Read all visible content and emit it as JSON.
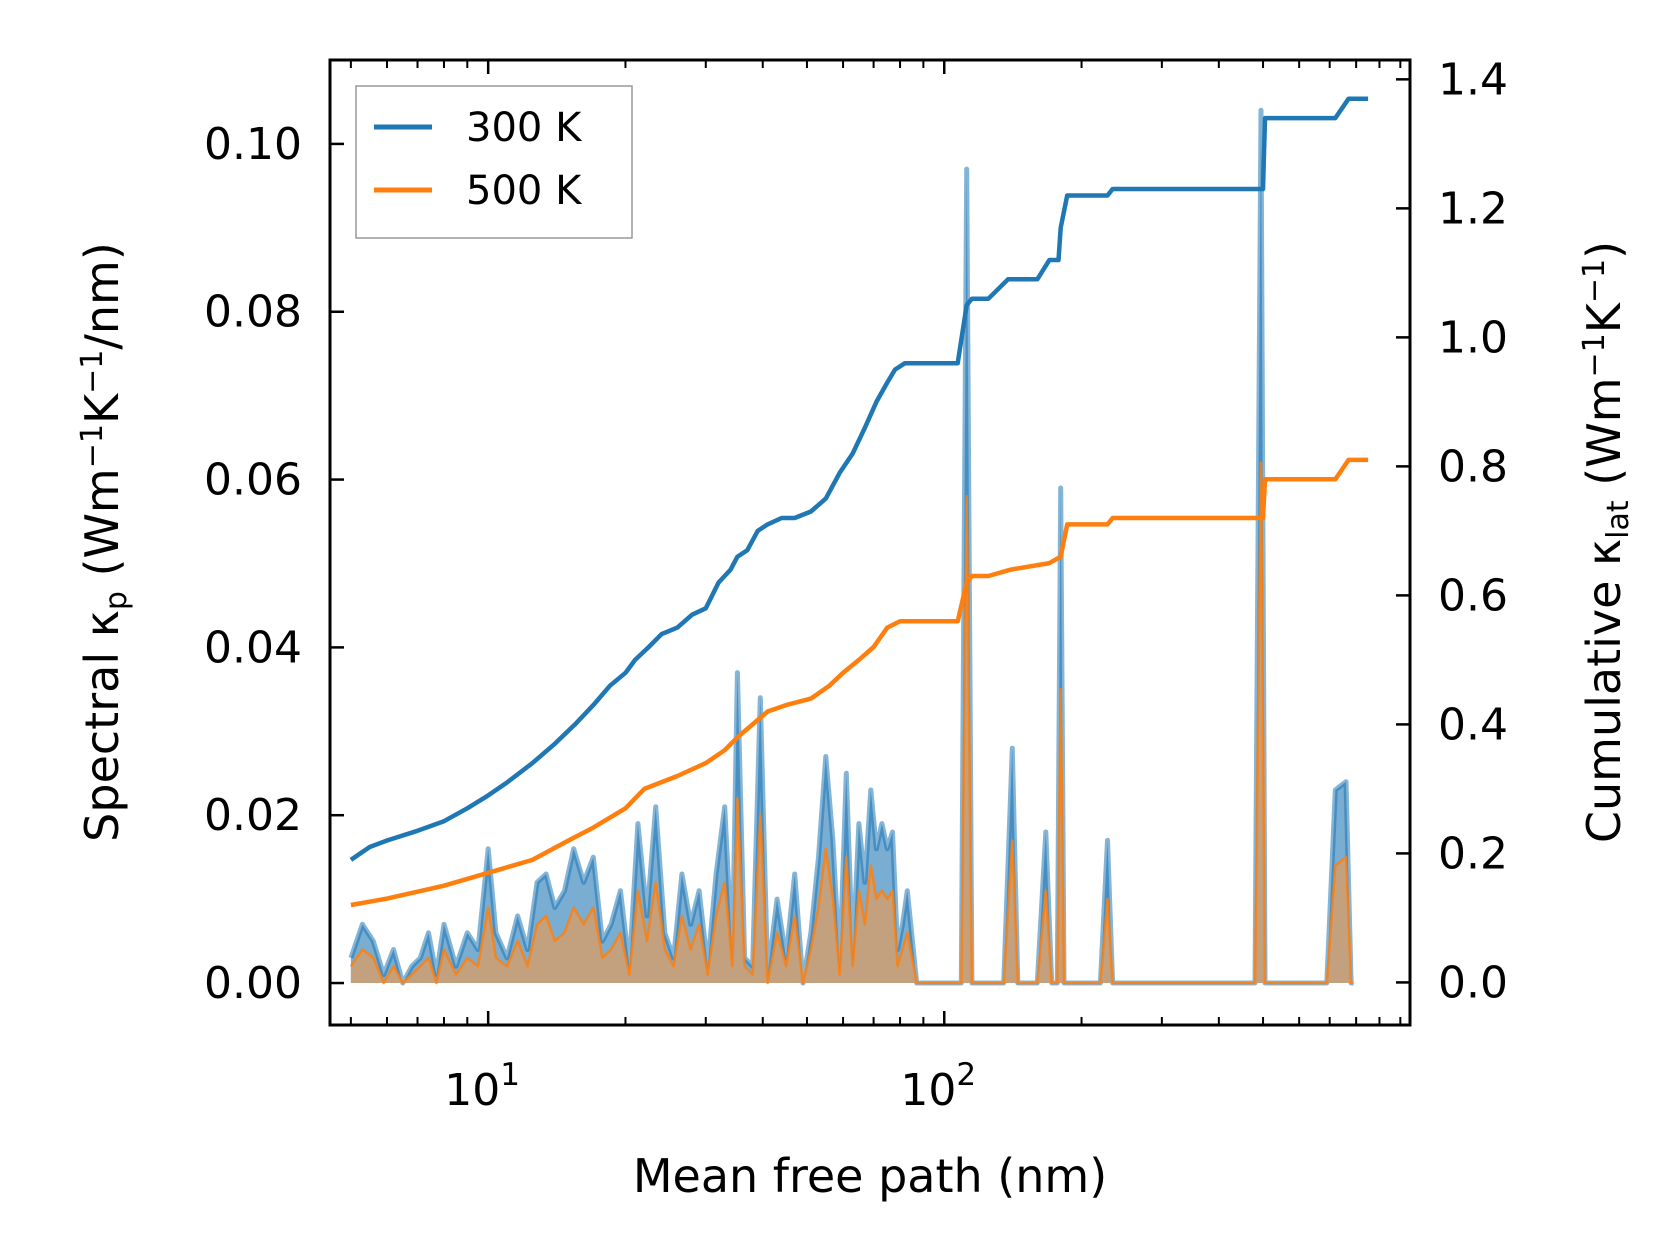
{
  "chart_data": {
    "type": "line",
    "xlabel": "Mean free path (nm)",
    "xscale": "log",
    "xlim": [
      4.5,
      1050
    ],
    "x_ticks": [
      {
        "value": 10,
        "base": "10",
        "exp": "1"
      },
      {
        "value": 100,
        "base": "10",
        "exp": "2"
      }
    ],
    "ylabel_left": {
      "main": "Spectral κ",
      "sub": "p",
      "unit_a": " (Wm",
      "sup1": "−1",
      "unit_b": "K",
      "sup2": "−1",
      "unit_c": "/nm)"
    },
    "ylim_left": [
      -0.005,
      0.11
    ],
    "yticks_left": [
      "0.00",
      "0.02",
      "0.04",
      "0.06",
      "0.08",
      "0.10"
    ],
    "ylabel_right": {
      "main": "Cumulative κ",
      "sub": "lat",
      "unit_a": " (Wm",
      "sup1": "−1",
      "unit_b": "K",
      "sup2": "−1",
      "unit_c": ")"
    },
    "ylim_right": [
      -0.066,
      1.43
    ],
    "yticks_right": [
      "0.0",
      "0.2",
      "0.4",
      "0.6",
      "0.8",
      "1.0",
      "1.2",
      "1.4"
    ],
    "legend": {
      "location": "upper left",
      "entries": [
        "300 K",
        "500 K"
      ]
    },
    "colors": {
      "t300": "#1f77b4",
      "t500": "#ff7f0e",
      "fill500": "#c8a079"
    },
    "series": [
      {
        "name": "300 K",
        "kind": "cumulative",
        "axis": "right",
        "x": [
          5.0,
          5.5,
          6.0,
          7.0,
          8.0,
          9.0,
          10.0,
          11.0,
          12.5,
          14.0,
          15.5,
          17.0,
          18.5,
          20.0,
          21.0,
          22.5,
          24.0,
          26.0,
          28.0,
          30.0,
          32.0,
          34.0,
          35.2,
          37.0,
          39.0,
          41.0,
          44.0,
          47.0,
          51.0,
          55.0,
          59.0,
          63.0,
          67.0,
          71.0,
          75.0,
          78.0,
          82.0,
          90.0,
          100.0,
          107.0,
          112.0,
          115.0,
          125.0,
          138.0,
          145.0,
          160.0,
          170.0,
          178.0,
          180.0,
          186.0,
          200.0,
          228.0,
          234.0,
          300.0,
          450.0,
          500.0,
          505.0,
          520.0,
          720.0,
          770.0,
          850.0
        ],
        "y": [
          0.19,
          0.21,
          0.22,
          0.235,
          0.25,
          0.27,
          0.29,
          0.31,
          0.34,
          0.37,
          0.4,
          0.43,
          0.46,
          0.48,
          0.5,
          0.52,
          0.54,
          0.55,
          0.57,
          0.58,
          0.62,
          0.64,
          0.66,
          0.67,
          0.7,
          0.71,
          0.72,
          0.72,
          0.73,
          0.75,
          0.79,
          0.82,
          0.86,
          0.9,
          0.93,
          0.95,
          0.96,
          0.96,
          0.96,
          0.96,
          1.05,
          1.06,
          1.06,
          1.09,
          1.09,
          1.09,
          1.12,
          1.12,
          1.17,
          1.22,
          1.22,
          1.22,
          1.23,
          1.23,
          1.23,
          1.23,
          1.34,
          1.34,
          1.34,
          1.37,
          1.37
        ]
      },
      {
        "name": "500 K",
        "kind": "cumulative",
        "axis": "right",
        "x": [
          5.0,
          6.0,
          8.0,
          10.0,
          12.5,
          15.0,
          17.0,
          20.0,
          22.0,
          26.0,
          30.0,
          33.0,
          35.2,
          38.0,
          41.0,
          45.0,
          51.0,
          56.0,
          60.0,
          65.0,
          70.0,
          75.0,
          80.0,
          90.0,
          100.0,
          107.0,
          112.0,
          115.0,
          125.0,
          140.0,
          170.0,
          180.0,
          186.0,
          200.0,
          228.0,
          234.0,
          300.0,
          450.0,
          500.0,
          505.0,
          520.0,
          720.0,
          770.0,
          850.0
        ],
        "y": [
          0.12,
          0.13,
          0.15,
          0.17,
          0.19,
          0.22,
          0.24,
          0.27,
          0.3,
          0.32,
          0.34,
          0.36,
          0.38,
          0.4,
          0.42,
          0.43,
          0.44,
          0.46,
          0.48,
          0.5,
          0.52,
          0.55,
          0.56,
          0.56,
          0.56,
          0.56,
          0.62,
          0.63,
          0.63,
          0.64,
          0.65,
          0.66,
          0.71,
          0.71,
          0.71,
          0.72,
          0.72,
          0.72,
          0.72,
          0.78,
          0.78,
          0.78,
          0.81,
          0.81
        ]
      },
      {
        "name": "300 K",
        "kind": "spectral",
        "axis": "left",
        "x": [
          5.0,
          5.3,
          5.6,
          5.9,
          6.2,
          6.5,
          6.8,
          7.1,
          7.4,
          7.7,
          8.0,
          8.5,
          9.0,
          9.5,
          10.0,
          10.4,
          11.0,
          11.6,
          12.2,
          12.8,
          13.4,
          14.0,
          14.7,
          15.4,
          16.2,
          17.0,
          17.8,
          18.6,
          19.5,
          20.4,
          21.3,
          22.3,
          23.3,
          24.4,
          25.5,
          26.6,
          27.8,
          29.0,
          30.3,
          31.6,
          33.0,
          34.3,
          35.2,
          36.5,
          38.0,
          39.5,
          41.0,
          43.0,
          45.0,
          47.0,
          49.0,
          51.0,
          53.0,
          55.0,
          57.0,
          59.0,
          61.0,
          63.0,
          65.0,
          67.0,
          69.0,
          71.0,
          73.0,
          75.0,
          77.0,
          79.0,
          81.0,
          83.0,
          87.0,
          100.0,
          109.0,
          112.0,
          115.0,
          118.0,
          135.0,
          141.0,
          145.0,
          160.0,
          167.0,
          172.0,
          177.0,
          180.0,
          183.0,
          188.0,
          220.0,
          228.0,
          234.0,
          470.0,
          480.0,
          495.0,
          505.0,
          520.0,
          690.0,
          720.0,
          760.0,
          780.0,
          790.0
        ],
        "y": [
          0.003,
          0.007,
          0.005,
          0.001,
          0.004,
          0.0,
          0.002,
          0.003,
          0.006,
          0.001,
          0.007,
          0.002,
          0.006,
          0.004,
          0.016,
          0.006,
          0.003,
          0.008,
          0.004,
          0.012,
          0.013,
          0.009,
          0.011,
          0.016,
          0.012,
          0.015,
          0.005,
          0.007,
          0.011,
          0.002,
          0.019,
          0.008,
          0.021,
          0.006,
          0.003,
          0.013,
          0.007,
          0.011,
          0.002,
          0.013,
          0.021,
          0.003,
          0.037,
          0.003,
          0.002,
          0.034,
          0.001,
          0.01,
          0.003,
          0.013,
          0.0,
          0.006,
          0.015,
          0.027,
          0.017,
          0.002,
          0.025,
          0.003,
          0.019,
          0.012,
          0.023,
          0.016,
          0.019,
          0.016,
          0.018,
          0.004,
          0.007,
          0.011,
          0.0,
          0.0,
          0.0,
          0.097,
          0.0,
          0.0,
          0.0,
          0.028,
          0.0,
          0.0,
          0.018,
          0.0,
          0.0,
          0.059,
          0.0,
          0.0,
          0.0,
          0.017,
          0.0,
          0.0,
          0.0,
          0.104,
          0.0,
          0.0,
          0.0,
          0.023,
          0.024,
          0.0,
          0.0
        ]
      },
      {
        "name": "500 K",
        "kind": "spectral",
        "axis": "left",
        "x": [
          5.0,
          5.3,
          5.6,
          5.9,
          6.2,
          6.5,
          6.8,
          7.1,
          7.4,
          7.7,
          8.0,
          8.5,
          9.0,
          9.5,
          10.0,
          10.4,
          11.0,
          11.6,
          12.2,
          12.8,
          13.4,
          14.0,
          14.7,
          15.4,
          16.2,
          17.0,
          17.8,
          18.6,
          19.5,
          20.4,
          21.3,
          22.3,
          23.3,
          24.4,
          25.5,
          26.6,
          27.8,
          29.0,
          30.3,
          31.6,
          33.0,
          34.3,
          35.2,
          36.5,
          38.0,
          39.5,
          41.0,
          43.0,
          45.0,
          47.0,
          49.0,
          51.0,
          53.0,
          55.0,
          57.0,
          59.0,
          61.0,
          63.0,
          65.0,
          67.0,
          69.0,
          71.0,
          73.0,
          75.0,
          77.0,
          79.0,
          81.0,
          83.0,
          87.0,
          100.0,
          109.0,
          112.0,
          115.0,
          118.0,
          135.0,
          141.0,
          145.0,
          160.0,
          167.0,
          172.0,
          177.0,
          180.0,
          183.0,
          188.0,
          220.0,
          228.0,
          234.0,
          470.0,
          480.0,
          495.0,
          505.0,
          520.0,
          690.0,
          720.0,
          760.0,
          780.0,
          790.0
        ],
        "y": [
          0.002,
          0.004,
          0.003,
          0.0,
          0.002,
          0.0,
          0.001,
          0.002,
          0.003,
          0.0,
          0.004,
          0.001,
          0.003,
          0.002,
          0.009,
          0.003,
          0.002,
          0.005,
          0.002,
          0.007,
          0.008,
          0.005,
          0.006,
          0.009,
          0.007,
          0.009,
          0.003,
          0.004,
          0.006,
          0.001,
          0.011,
          0.005,
          0.012,
          0.004,
          0.002,
          0.008,
          0.004,
          0.007,
          0.001,
          0.008,
          0.012,
          0.002,
          0.022,
          0.002,
          0.001,
          0.02,
          0.0,
          0.006,
          0.002,
          0.008,
          0.0,
          0.004,
          0.009,
          0.016,
          0.01,
          0.001,
          0.015,
          0.002,
          0.011,
          0.007,
          0.014,
          0.01,
          0.011,
          0.01,
          0.011,
          0.002,
          0.004,
          0.006,
          0.0,
          0.0,
          0.0,
          0.058,
          0.0,
          0.0,
          0.0,
          0.017,
          0.0,
          0.0,
          0.011,
          0.0,
          0.0,
          0.035,
          0.0,
          0.0,
          0.0,
          0.01,
          0.0,
          0.0,
          0.0,
          0.062,
          0.0,
          0.0,
          0.0,
          0.014,
          0.015,
          0.0,
          0.0
        ]
      }
    ]
  }
}
